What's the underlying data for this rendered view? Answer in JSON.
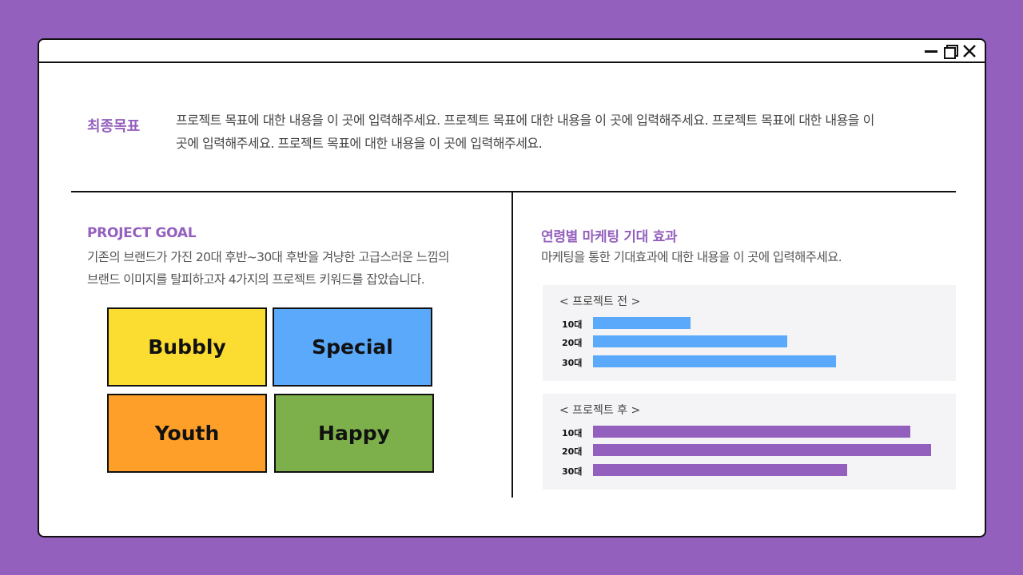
{
  "final_goal": {
    "title": "최종목표",
    "text": "프로젝트 목표에 대한 내용을 이 곳에 입력해주세요.  프로젝트 목표에 대한 내용을 이 곳에 입력해주세요.  프로젝트 목표에 대한 내용을 이 곳에 입력해주세요. 프로젝트 목표에 대한 내용을 이 곳에 입력해주세요."
  },
  "project_goal": {
    "title": "PROJECT GOAL",
    "line1": "기존의 브랜드가 가진 20대 후반~30대 후반을 겨냥한 고급스러운 느낌의",
    "line2": "브랜드 이미지를 탈피하고자 4가지의 프로젝트 키워드를 잡았습니다.",
    "keywords": [
      {
        "label": "Bubbly",
        "color": "#fbdd32"
      },
      {
        "label": "Special",
        "color": "#5aa9fa"
      },
      {
        "label": "Youth",
        "color": "#fd9f29"
      },
      {
        "label": "Happy",
        "color": "#7db04a"
      }
    ]
  },
  "marketing": {
    "title": "연령별 마케팅 기대 효과",
    "desc": "마케팅을 통한 기대효과에 대한 내용을 이 곳에 입력해주세요."
  },
  "chart_data": [
    {
      "type": "bar",
      "title": "< 프로젝트 전 >",
      "categories": [
        "10대",
        "20대",
        "30대"
      ],
      "values": [
        122,
        243,
        304
      ],
      "color": "#5aa9fa"
    },
    {
      "type": "bar",
      "title": "< 프로젝트 후 >",
      "categories": [
        "10대",
        "20대",
        "30대"
      ],
      "values": [
        397,
        423,
        318
      ],
      "color": "#9460bd"
    }
  ]
}
